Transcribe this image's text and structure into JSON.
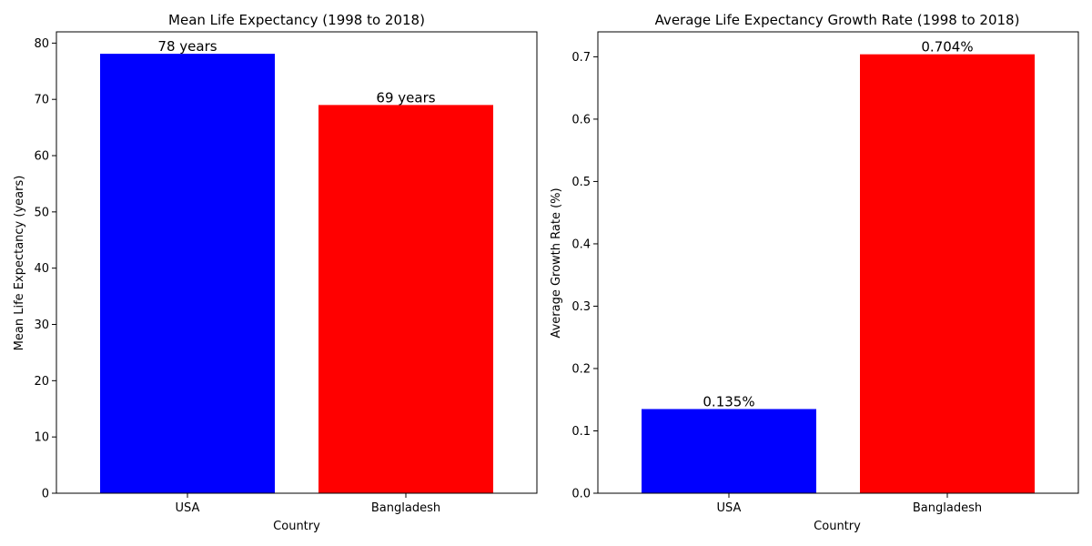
{
  "chart_data": [
    {
      "type": "bar",
      "title": "Mean Life Expectancy (1998 to 2018)",
      "xlabel": "Country",
      "ylabel": "Mean Life Expectancy (years)",
      "categories": [
        "USA",
        "Bangladesh"
      ],
      "values": [
        78.1,
        69.0
      ],
      "data_labels": [
        "78 years",
        "69 years"
      ],
      "colors": [
        "#0000ff",
        "#ff0000"
      ],
      "ylim": [
        0,
        82
      ],
      "yticks": [
        0,
        10,
        20,
        30,
        40,
        50,
        60,
        70,
        80
      ],
      "ytick_labels": [
        "0",
        "10",
        "20",
        "30",
        "40",
        "50",
        "60",
        "70",
        "80"
      ],
      "grid": false
    },
    {
      "type": "bar",
      "title": "Average Life Expectancy Growth Rate (1998 to 2018)",
      "xlabel": "Country",
      "ylabel": "Average Growth Rate (%)",
      "categories": [
        "USA",
        "Bangladesh"
      ],
      "values": [
        0.135,
        0.704
      ],
      "data_labels": [
        "0.135%",
        "0.704%"
      ],
      "colors": [
        "#0000ff",
        "#ff0000"
      ],
      "ylim": [
        0,
        0.74
      ],
      "yticks": [
        0.0,
        0.1,
        0.2,
        0.3,
        0.4,
        0.5,
        0.6,
        0.7
      ],
      "ytick_labels": [
        "0.0",
        "0.1",
        "0.2",
        "0.3",
        "0.4",
        "0.5",
        "0.6",
        "0.7"
      ],
      "grid": false
    }
  ]
}
